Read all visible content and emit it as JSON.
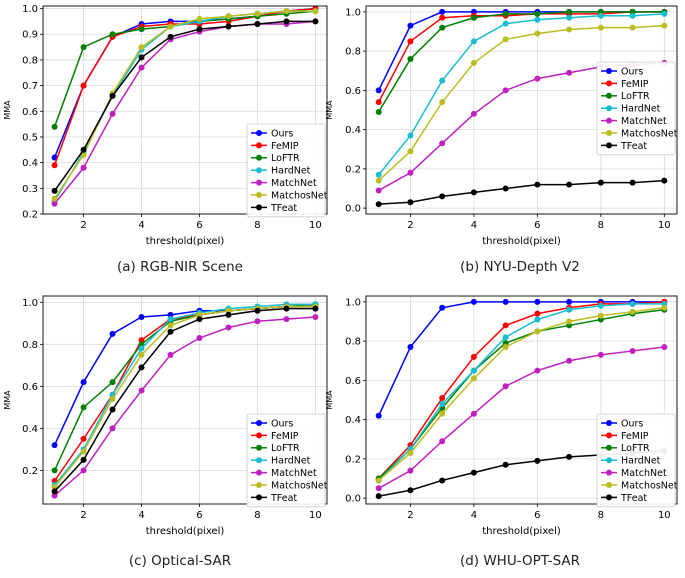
{
  "chart_data": [
    {
      "type": "line",
      "caption": "(a) RGB-NIR Scene",
      "xlabel": "threshold(pixel)",
      "ylabel": "MMA",
      "x": [
        1,
        2,
        3,
        4,
        5,
        6,
        7,
        8,
        9,
        10
      ],
      "xticks": [
        2,
        4,
        6,
        8,
        10
      ],
      "xlim": [
        0.6,
        10.4
      ],
      "ylim": [
        0.2,
        1.01
      ],
      "yticks": [
        0.2,
        0.3,
        0.4,
        0.5,
        0.6,
        0.7,
        0.8,
        0.9,
        1.0
      ],
      "ytick_labels": [
        "0.2",
        "0.3",
        "0.4",
        "0.5",
        "0.6",
        "0.7",
        "0.8",
        "0.9",
        "1.0"
      ],
      "grid": true,
      "legend_position": "bottom-right",
      "series": [
        {
          "name": "Ours",
          "color": "#0000ff",
          "values": [
            0.42,
            0.7,
            0.89,
            0.94,
            0.95,
            0.95,
            0.96,
            0.97,
            0.99,
            1.0
          ]
        },
        {
          "name": "FeMIP",
          "color": "#ff0000",
          "values": [
            0.39,
            0.7,
            0.89,
            0.93,
            0.94,
            0.94,
            0.95,
            0.97,
            0.99,
            1.0
          ]
        },
        {
          "name": "LoFTR",
          "color": "#008000",
          "values": [
            0.54,
            0.85,
            0.9,
            0.92,
            0.93,
            0.95,
            0.96,
            0.97,
            0.98,
            0.99
          ]
        },
        {
          "name": "HardNet",
          "color": "#17becf",
          "values": [
            0.25,
            0.44,
            0.66,
            0.84,
            0.93,
            0.95,
            0.97,
            0.98,
            0.99,
            0.99
          ]
        },
        {
          "name": "MatchNet",
          "color": "#c020c0",
          "values": [
            0.24,
            0.38,
            0.59,
            0.77,
            0.88,
            0.91,
            0.93,
            0.94,
            0.94,
            0.95
          ]
        },
        {
          "name": "MatchosNet",
          "color": "#bcbd22",
          "values": [
            0.26,
            0.43,
            0.67,
            0.85,
            0.93,
            0.96,
            0.97,
            0.98,
            0.99,
            0.99
          ]
        },
        {
          "name": "TFeat",
          "color": "#000000",
          "values": [
            0.29,
            0.45,
            0.66,
            0.81,
            0.89,
            0.92,
            0.93,
            0.94,
            0.95,
            0.95
          ]
        }
      ]
    },
    {
      "type": "line",
      "caption": "(b) NYU-Depth V2",
      "xlabel": "threshold(pixel)",
      "ylabel": "MMA",
      "x": [
        1,
        2,
        3,
        4,
        5,
        6,
        7,
        8,
        9,
        10
      ],
      "xticks": [
        2,
        4,
        6,
        8,
        10
      ],
      "xlim": [
        0.6,
        10.4
      ],
      "ylim": [
        -0.03,
        1.03
      ],
      "yticks": [
        0.0,
        0.2,
        0.4,
        0.6,
        0.8,
        1.0
      ],
      "ytick_labels": [
        "0.0",
        "0.2",
        "0.4",
        "0.6",
        "0.8",
        "1.0"
      ],
      "grid": true,
      "legend_position": "top-right",
      "series": [
        {
          "name": "Ours",
          "color": "#0000ff",
          "values": [
            0.6,
            0.93,
            1.0,
            1.0,
            1.0,
            1.0,
            1.0,
            1.0,
            1.0,
            1.0
          ]
        },
        {
          "name": "FeMIP",
          "color": "#ff0000",
          "values": [
            0.54,
            0.85,
            0.97,
            0.98,
            0.98,
            0.99,
            0.99,
            0.99,
            1.0,
            1.0
          ]
        },
        {
          "name": "LoFTR",
          "color": "#008000",
          "values": [
            0.49,
            0.76,
            0.92,
            0.97,
            0.99,
            0.99,
            1.0,
            1.0,
            1.0,
            1.0
          ]
        },
        {
          "name": "HardNet",
          "color": "#17becf",
          "values": [
            0.17,
            0.37,
            0.65,
            0.85,
            0.94,
            0.96,
            0.97,
            0.98,
            0.98,
            0.99
          ]
        },
        {
          "name": "MatchNet",
          "color": "#c020c0",
          "values": [
            0.09,
            0.18,
            0.33,
            0.48,
            0.6,
            0.66,
            0.69,
            0.72,
            0.73,
            0.74
          ]
        },
        {
          "name": "MatchosNet",
          "color": "#bcbd22",
          "values": [
            0.14,
            0.29,
            0.54,
            0.74,
            0.86,
            0.89,
            0.91,
            0.92,
            0.92,
            0.93
          ]
        },
        {
          "name": "TFeat",
          "color": "#000000",
          "values": [
            0.02,
            0.03,
            0.06,
            0.08,
            0.1,
            0.12,
            0.12,
            0.13,
            0.13,
            0.14
          ]
        }
      ]
    },
    {
      "type": "line",
      "caption": "(c) Optical-SAR",
      "xlabel": "threshold(pixel)",
      "ylabel": "MMA",
      "x": [
        1,
        2,
        3,
        4,
        5,
        6,
        7,
        8,
        9,
        10
      ],
      "xticks": [
        2,
        4,
        6,
        8,
        10
      ],
      "xlim": [
        0.6,
        10.4
      ],
      "ylim": [
        0.04,
        1.03
      ],
      "yticks": [
        0.2,
        0.4,
        0.6,
        0.8,
        1.0
      ],
      "ytick_labels": [
        "0.2",
        "0.4",
        "0.6",
        "0.8",
        "1.0"
      ],
      "grid": true,
      "legend_position": "bottom-right",
      "series": [
        {
          "name": "Ours",
          "color": "#0000ff",
          "values": [
            0.32,
            0.62,
            0.85,
            0.93,
            0.94,
            0.96,
            0.96,
            0.97,
            0.98,
            0.98
          ]
        },
        {
          "name": "FeMIP",
          "color": "#ff0000",
          "values": [
            0.15,
            0.35,
            0.56,
            0.82,
            0.92,
            0.94,
            0.96,
            0.97,
            0.98,
            0.98
          ]
        },
        {
          "name": "LoFTR",
          "color": "#008000",
          "values": [
            0.2,
            0.5,
            0.62,
            0.8,
            0.91,
            0.94,
            0.96,
            0.97,
            0.98,
            0.99
          ]
        },
        {
          "name": "HardNet",
          "color": "#17becf",
          "values": [
            0.13,
            0.3,
            0.56,
            0.78,
            0.92,
            0.95,
            0.97,
            0.98,
            0.99,
            0.99
          ]
        },
        {
          "name": "MatchNet",
          "color": "#c020c0",
          "values": [
            0.08,
            0.2,
            0.4,
            0.58,
            0.75,
            0.83,
            0.88,
            0.91,
            0.92,
            0.93
          ]
        },
        {
          "name": "MatchosNet",
          "color": "#bcbd22",
          "values": [
            0.12,
            0.29,
            0.54,
            0.75,
            0.89,
            0.94,
            0.96,
            0.97,
            0.98,
            0.98
          ]
        },
        {
          "name": "TFeat",
          "color": "#000000",
          "values": [
            0.1,
            0.25,
            0.49,
            0.69,
            0.86,
            0.92,
            0.94,
            0.96,
            0.97,
            0.97
          ]
        }
      ]
    },
    {
      "type": "line",
      "caption": "(d) WHU-OPT-SAR",
      "xlabel": "threshold(pixel)",
      "ylabel": "MMA",
      "x": [
        1,
        2,
        3,
        4,
        5,
        6,
        7,
        8,
        9,
        10
      ],
      "xticks": [
        2,
        4,
        6,
        8,
        10
      ],
      "xlim": [
        0.6,
        10.4
      ],
      "ylim": [
        -0.03,
        1.03
      ],
      "yticks": [
        0.0,
        0.2,
        0.4,
        0.6,
        0.8,
        1.0
      ],
      "ytick_labels": [
        "0.0",
        "0.2",
        "0.4",
        "0.6",
        "0.8",
        "1.0"
      ],
      "grid": true,
      "legend_position": "bottom-right",
      "series": [
        {
          "name": "Ours",
          "color": "#0000ff",
          "values": [
            0.42,
            0.77,
            0.97,
            1.0,
            1.0,
            1.0,
            1.0,
            1.0,
            1.0,
            1.0
          ]
        },
        {
          "name": "FeMIP",
          "color": "#ff0000",
          "values": [
            0.1,
            0.27,
            0.51,
            0.72,
            0.88,
            0.94,
            0.97,
            0.99,
            0.99,
            1.0
          ]
        },
        {
          "name": "LoFTR",
          "color": "#008000",
          "values": [
            0.1,
            0.25,
            0.46,
            0.65,
            0.79,
            0.85,
            0.88,
            0.91,
            0.94,
            0.96
          ]
        },
        {
          "name": "HardNet",
          "color": "#17becf",
          "values": [
            0.09,
            0.25,
            0.48,
            0.65,
            0.82,
            0.91,
            0.96,
            0.98,
            0.99,
            0.99
          ]
        },
        {
          "name": "MatchNet",
          "color": "#c020c0",
          "values": [
            0.05,
            0.14,
            0.29,
            0.43,
            0.57,
            0.65,
            0.7,
            0.73,
            0.75,
            0.77
          ]
        },
        {
          "name": "MatchosNet",
          "color": "#bcbd22",
          "values": [
            0.09,
            0.23,
            0.43,
            0.61,
            0.77,
            0.85,
            0.9,
            0.93,
            0.95,
            0.97
          ]
        },
        {
          "name": "TFeat",
          "color": "#000000",
          "values": [
            0.01,
            0.04,
            0.09,
            0.13,
            0.17,
            0.19,
            0.21,
            0.22,
            0.23,
            0.24
          ]
        }
      ]
    }
  ]
}
